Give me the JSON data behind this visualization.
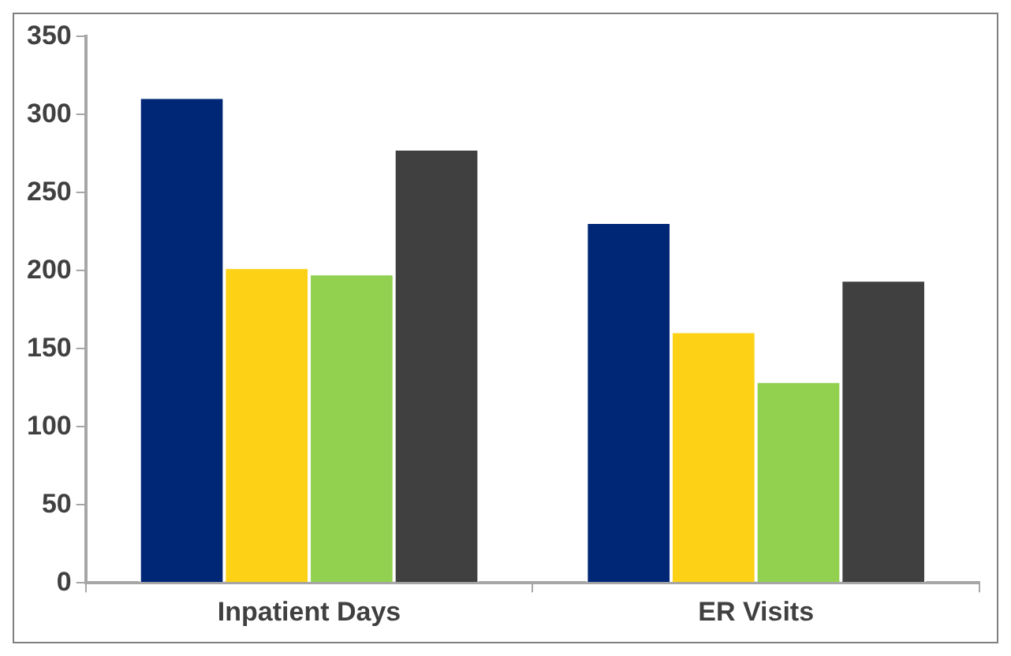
{
  "chart_data": {
    "type": "bar",
    "categories": [
      "Inpatient Days",
      "ER Visits"
    ],
    "series": [
      {
        "color": "#002776",
        "values": [
          311,
          231
        ]
      },
      {
        "color": "#fcd116",
        "values": [
          202,
          161
        ]
      },
      {
        "color": "#92d050",
        "values": [
          198,
          129
        ]
      },
      {
        "color": "#404040",
        "values": [
          278,
          194
        ]
      }
    ],
    "ylim": [
      0,
      350
    ],
    "yticks": [
      0,
      50,
      100,
      150,
      200,
      250,
      300,
      350
    ],
    "grid": false,
    "legend": false
  }
}
